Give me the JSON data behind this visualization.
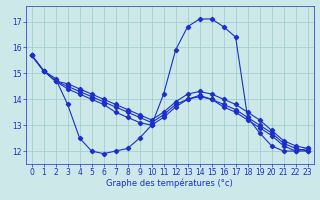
{
  "xlabel": "Graphe des températures (°c)",
  "bg_color": "#cce8e8",
  "line_color": "#1a2fcc",
  "grid_color": "#99cccc",
  "xlim": [
    -0.5,
    23.5
  ],
  "ylim": [
    11.5,
    17.6
  ],
  "yticks": [
    12,
    13,
    14,
    15,
    16,
    17
  ],
  "xticks": [
    0,
    1,
    2,
    3,
    4,
    5,
    6,
    7,
    8,
    9,
    10,
    11,
    12,
    13,
    14,
    15,
    16,
    17,
    18,
    19,
    20,
    21,
    22,
    23
  ],
  "curve1_x": [
    0,
    1,
    2,
    3,
    4,
    5,
    6,
    7,
    8,
    9,
    10,
    11,
    12,
    13,
    14,
    15,
    16,
    17,
    18,
    19,
    20,
    21,
    22,
    23
  ],
  "curve1_y": [
    15.7,
    15.1,
    14.8,
    13.8,
    12.5,
    12.0,
    11.9,
    12.0,
    12.1,
    12.5,
    13.0,
    14.2,
    15.9,
    16.8,
    17.1,
    17.1,
    16.8,
    16.4,
    13.3,
    12.7,
    12.2,
    12.0,
    12.0,
    12.1
  ],
  "curve2_x": [
    0,
    1,
    2,
    3,
    4,
    5,
    6,
    7,
    8,
    9,
    10,
    11,
    12,
    13,
    14,
    15,
    16,
    17,
    18,
    19,
    20,
    21,
    22,
    23
  ],
  "curve2_y": [
    15.7,
    15.1,
    14.7,
    14.6,
    14.4,
    14.2,
    14.0,
    13.8,
    13.6,
    13.4,
    13.2,
    13.5,
    13.9,
    14.2,
    14.3,
    14.2,
    14.0,
    13.8,
    13.5,
    13.2,
    12.8,
    12.4,
    12.2,
    12.1
  ],
  "curve3_x": [
    0,
    1,
    2,
    3,
    4,
    5,
    6,
    7,
    8,
    9,
    10,
    11,
    12,
    13,
    14,
    15,
    16,
    17,
    18,
    19,
    20,
    21,
    22,
    23
  ],
  "curve3_y": [
    15.7,
    15.1,
    14.7,
    14.5,
    14.3,
    14.1,
    13.9,
    13.7,
    13.5,
    13.3,
    13.1,
    13.4,
    13.8,
    14.0,
    14.15,
    14.0,
    13.8,
    13.6,
    13.3,
    13.0,
    12.7,
    12.3,
    12.1,
    12.0
  ],
  "curve4_x": [
    0,
    1,
    2,
    3,
    4,
    5,
    6,
    7,
    8,
    9,
    10,
    11,
    12,
    13,
    14,
    15,
    16,
    17,
    18,
    19,
    20,
    21,
    22,
    23
  ],
  "curve4_y": [
    15.7,
    15.1,
    14.7,
    14.4,
    14.2,
    14.0,
    13.8,
    13.5,
    13.3,
    13.1,
    13.0,
    13.3,
    13.7,
    14.0,
    14.1,
    14.0,
    13.7,
    13.5,
    13.2,
    12.9,
    12.6,
    12.2,
    12.0,
    12.0
  ],
  "tick_fontsize": 5.5,
  "xlabel_fontsize": 6.0,
  "linewidth": 0.8,
  "markersize": 2.2
}
